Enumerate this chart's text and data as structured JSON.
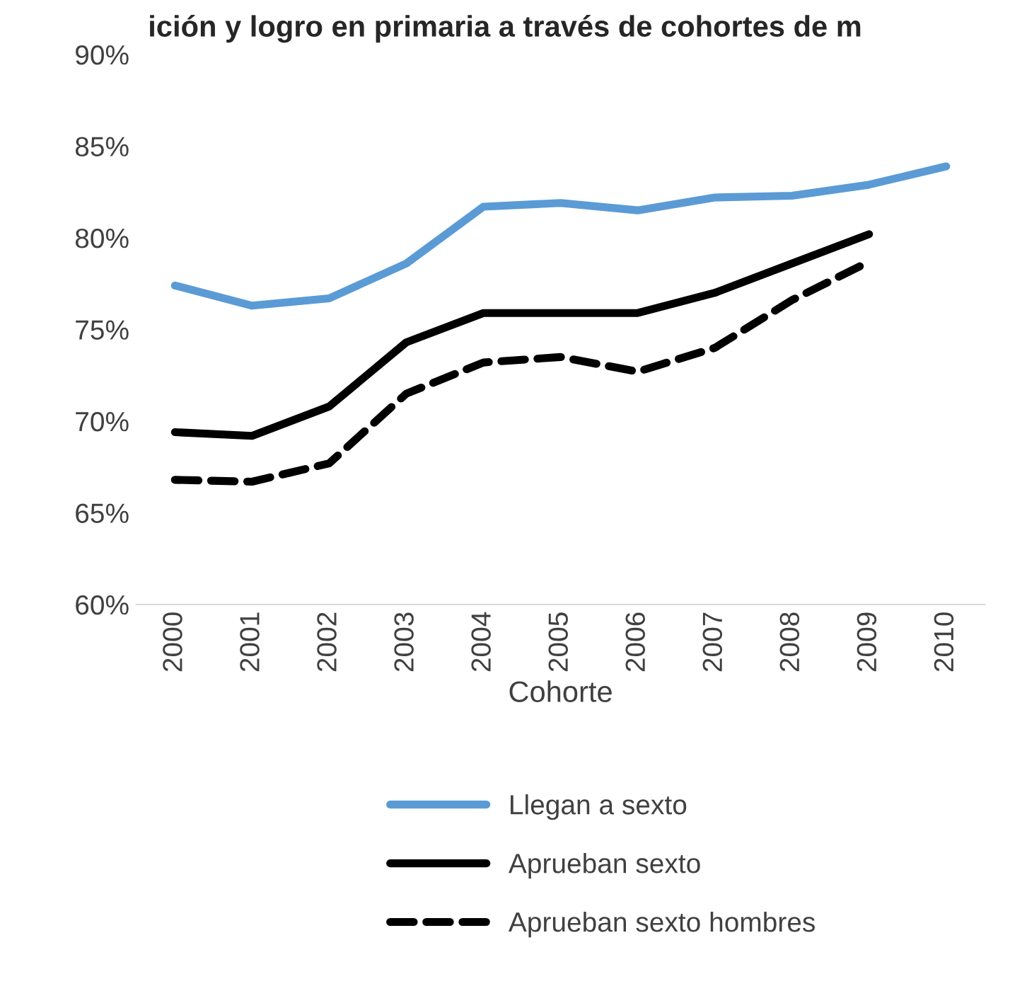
{
  "chart_data": {
    "type": "line",
    "title": "ición y logro en primaria a través de cohortes de m",
    "xlabel": "Cohorte",
    "categories": [
      "2000",
      "2001",
      "2002",
      "2003",
      "2004",
      "2005",
      "2006",
      "2007",
      "2008",
      "2009",
      "2010"
    ],
    "series": [
      {
        "name": "Llegan a sexto",
        "color": "#5b9bd5",
        "line_style": "solid",
        "values": [
          77.4,
          76.3,
          76.7,
          78.6,
          81.7,
          81.9,
          81.5,
          82.2,
          82.3,
          82.9,
          83.9
        ]
      },
      {
        "name": "Aprueban sexto",
        "color": "#000000",
        "line_style": "solid",
        "values": [
          69.4,
          69.2,
          70.8,
          74.3,
          75.9,
          75.9,
          75.9,
          77.0,
          78.6,
          80.2,
          null
        ]
      },
      {
        "name": "Aprueban sexto hombres",
        "color": "#000000",
        "line_style": "dashed",
        "values": [
          66.8,
          66.7,
          67.7,
          71.5,
          73.2,
          73.5,
          72.7,
          74.0,
          76.6,
          78.7,
          null
        ]
      }
    ],
    "ylim": [
      60,
      90
    ],
    "yticks": [
      {
        "value": 60,
        "label": "60%"
      },
      {
        "value": 65,
        "label": "65%"
      },
      {
        "value": 70,
        "label": "70%"
      },
      {
        "value": 75,
        "label": "75%"
      },
      {
        "value": 80,
        "label": "80%"
      },
      {
        "value": 85,
        "label": "85%"
      },
      {
        "value": 90,
        "label": "90%"
      }
    ],
    "grid": false,
    "legend": "bottom",
    "marker": "none"
  }
}
